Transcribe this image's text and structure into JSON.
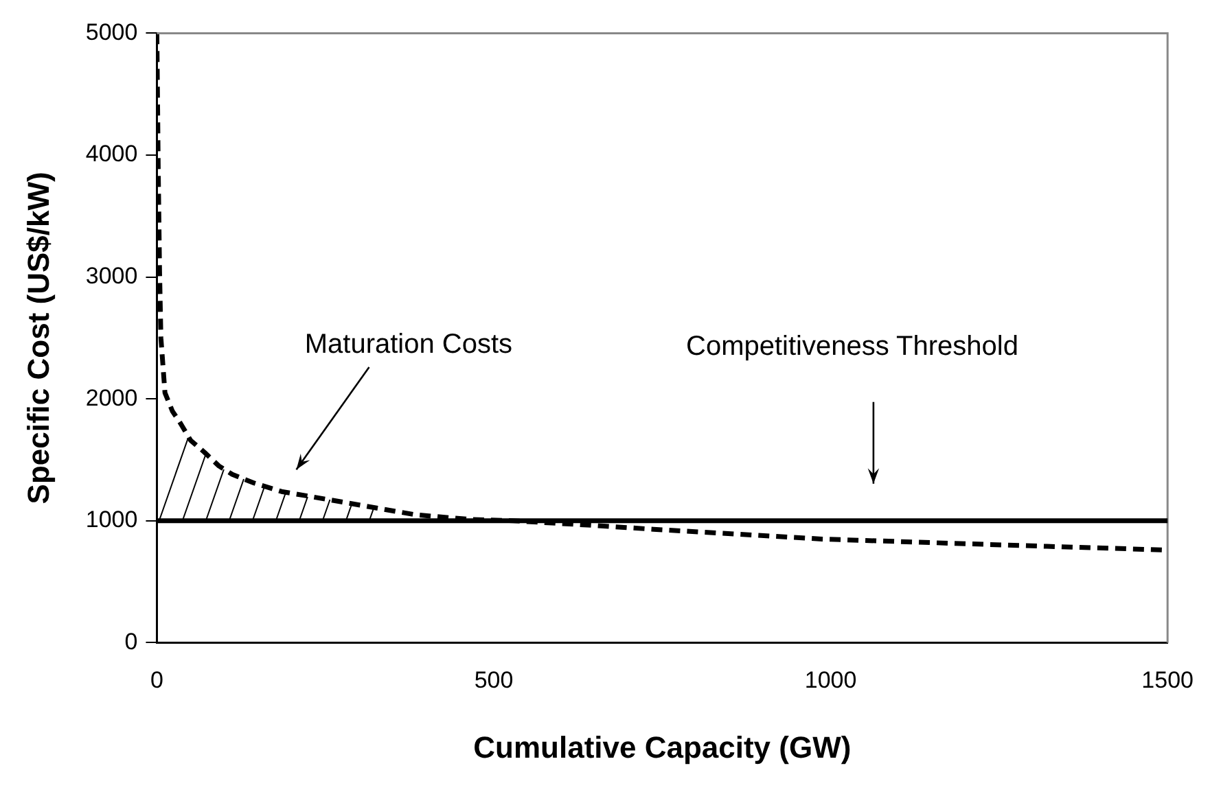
{
  "chart_data": {
    "type": "line",
    "xlabel": "Cumulative Capacity (GW)",
    "ylabel": "Specific Cost (US$/kW)",
    "xlim": [
      0,
      1500
    ],
    "xticks": [
      0,
      500,
      1000,
      1500
    ],
    "ylim": [
      0,
      5000
    ],
    "yticks": [
      0,
      1000,
      2000,
      3000,
      4000,
      5000
    ],
    "grid": false,
    "legend": false,
    "marker": "none",
    "line_style": "dashed",
    "series": [
      {
        "color": "#000000",
        "x": [
          0,
          2,
          4,
          6,
          12,
          23,
          35,
          50,
          71,
          92,
          112,
          144,
          185,
          227,
          300,
          383,
          467,
          529,
          592,
          654,
          737,
          862,
          987,
          1154,
          1321,
          1500
        ],
        "values": [
          5000,
          3900,
          3050,
          2500,
          2050,
          1900,
          1800,
          1660,
          1560,
          1450,
          1380,
          1310,
          1240,
          1200,
          1130,
          1050,
          1010,
          1000,
          980,
          960,
          930,
          890,
          850,
          820,
          790,
          760
        ]
      }
    ],
    "ref_lines": [
      {
        "axis": "y",
        "value": 1000,
        "label": "Competitiveness Threshold",
        "color": "#000000",
        "line_style": "solid"
      }
    ],
    "annotations": [
      "Maturation Costs"
    ]
  }
}
